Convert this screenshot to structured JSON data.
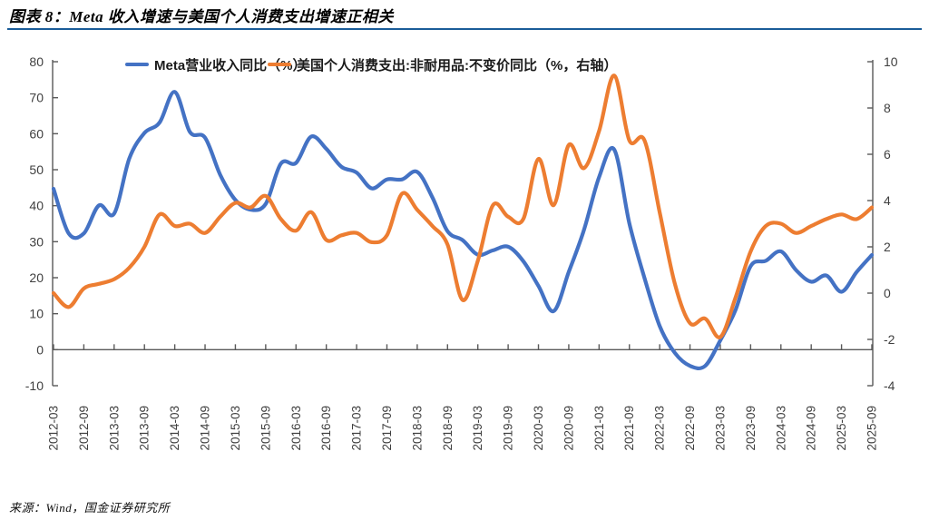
{
  "page": {
    "title": "图表 8：Meta 收入增速与美国个人消费支出增速正相关",
    "source": "来源：Wind，国金证券研究所",
    "accent_color": "#1A5C99"
  },
  "chart_data": {
    "type": "line",
    "title": "图表 8：Meta 收入增速与美国个人消费支出增速正相关",
    "grid": false,
    "legend_position": "top",
    "x": [
      "2012-03",
      "2012-06",
      "2012-09",
      "2012-12",
      "2013-03",
      "2013-06",
      "2013-09",
      "2013-12",
      "2014-03",
      "2014-06",
      "2014-09",
      "2014-12",
      "2015-03",
      "2015-06",
      "2015-09",
      "2015-12",
      "2016-03",
      "2016-06",
      "2016-09",
      "2016-12",
      "2017-03",
      "2017-06",
      "2017-09",
      "2017-12",
      "2018-03",
      "2018-06",
      "2018-09",
      "2018-12",
      "2019-03",
      "2019-06",
      "2019-09",
      "2019-12",
      "2020-03",
      "2020-06",
      "2020-09",
      "2020-12",
      "2021-03",
      "2021-06",
      "2021-09",
      "2021-12",
      "2022-03",
      "2022-06",
      "2022-09",
      "2022-12",
      "2023-03",
      "2023-06",
      "2023-09",
      "2023-12",
      "2024-03",
      "2024-06",
      "2024-09",
      "2024-12",
      "2025-03",
      "2025-06",
      "2025-09"
    ],
    "x_tick_labels": [
      "2012-03",
      "2012-09",
      "2013-03",
      "2013-09",
      "2014-03",
      "2014-09",
      "2015-03",
      "2015-09",
      "2016-03",
      "2016-09",
      "2017-03",
      "2017-09",
      "2018-03",
      "2018-09",
      "2019-03",
      "2019-09",
      "2020-03",
      "2020-09",
      "2021-03",
      "2021-09",
      "2022-03",
      "2022-09",
      "2023-03",
      "2023-09",
      "2024-03",
      "2024-09",
      "2025-03",
      "2025-09"
    ],
    "series": [
      {
        "name": "Meta营业收入同比（%）",
        "axis": "left",
        "color": "#4472C4",
        "values": [
          44.7,
          32.3,
          32.3,
          40.1,
          37.8,
          53.1,
          60.2,
          63.1,
          71.6,
          60.5,
          58.9,
          48.6,
          41.6,
          38.9,
          40.5,
          51.7,
          51.9,
          59.2,
          55.8,
          50.8,
          49.2,
          44.8,
          47.3,
          47.3,
          49.4,
          42.3,
          32.9,
          30.4,
          26.4,
          27.6,
          28.6,
          24.6,
          17.7,
          10.7,
          21.6,
          33.2,
          47.9,
          55.6,
          35.1,
          19.9,
          6.6,
          -0.9,
          -4.5,
          -4.5,
          2.6,
          11.0,
          23.2,
          24.7,
          27.3,
          22.1,
          18.9,
          20.6,
          16.1,
          21.6,
          26.3
        ]
      },
      {
        "name": "美国个人消费支出:非耐用品:不变价同比（%，右轴）",
        "axis": "right",
        "color": "#ED7D31",
        "values": [
          0.0,
          -0.6,
          0.2,
          0.4,
          0.6,
          1.1,
          2.0,
          3.4,
          2.9,
          3.0,
          2.6,
          3.3,
          3.9,
          3.7,
          4.2,
          3.2,
          2.7,
          3.5,
          2.3,
          2.5,
          2.6,
          2.2,
          2.5,
          4.3,
          3.6,
          2.9,
          2.1,
          -0.3,
          1.4,
          3.8,
          3.3,
          3.2,
          5.8,
          3.8,
          6.4,
          5.4,
          7.0,
          9.4,
          6.6,
          6.6,
          3.5,
          0.4,
          -1.3,
          -1.1,
          -1.9,
          -0.2,
          1.8,
          2.9,
          3.0,
          2.6,
          2.9,
          3.2,
          3.4,
          3.2,
          3.7
        ]
      }
    ],
    "left_axis": {
      "min": -10,
      "max": 80,
      "step": 10,
      "tick_labels": [
        "80",
        "70",
        "60",
        "50",
        "40",
        "30",
        "20",
        "10",
        "0",
        "-10"
      ]
    },
    "right_axis": {
      "min": -4,
      "max": 10,
      "step": 2,
      "tick_labels": [
        "10",
        "8",
        "6",
        "4",
        "2",
        "0",
        "-2",
        "-4"
      ]
    }
  }
}
